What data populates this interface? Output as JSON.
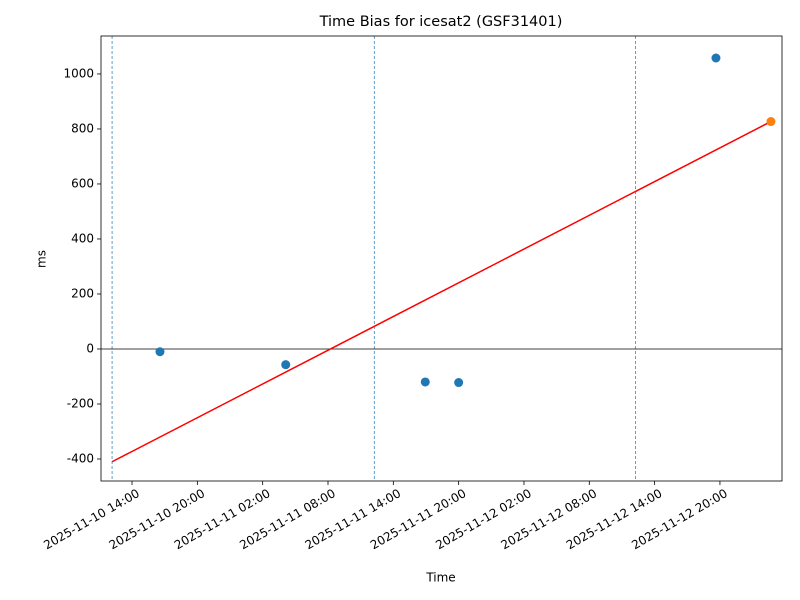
{
  "chart_data": {
    "type": "scatter",
    "title": "Time Bias for icesat2 (GSF31401)",
    "xlabel": "Time",
    "ylabel": "ms",
    "xlim": [
      "2025-11-10 11:09",
      "2025-11-13 01:42"
    ],
    "ylim": [
      -480,
      1138
    ],
    "xticks": [
      "2025-11-10 14:00",
      "2025-11-10 20:00",
      "2025-11-11 02:00",
      "2025-11-11 08:00",
      "2025-11-11 14:00",
      "2025-11-11 20:00",
      "2025-11-12 02:00",
      "2025-11-12 08:00",
      "2025-11-12 14:00",
      "2025-11-12 20:00"
    ],
    "yticks": [
      -400,
      -200,
      0,
      200,
      400,
      600,
      800,
      1000
    ],
    "series": [
      {
        "color": "#1f77b4",
        "x": [
          "2025-11-10 16:34",
          "2025-11-11 04:07",
          "2025-11-11 16:56",
          "2025-11-11 20:00",
          "2025-11-12 19:38"
        ],
        "values": [
          -10,
          -57,
          -120,
          -122,
          1058
        ]
      },
      {
        "color": "#ff7f0e",
        "x": [
          "2025-11-13 00:41"
        ],
        "values": [
          827
        ]
      }
    ],
    "lines": [
      {
        "color": "#ff0000",
        "x": [
          "2025-11-10 12:10",
          "2025-11-13 00:41"
        ],
        "values": [
          -410,
          827
        ]
      }
    ],
    "hline": 0,
    "vlines": [
      "2025-11-10 12:10",
      "2025-11-11 12:15",
      "2025-11-12 12:15"
    ]
  }
}
